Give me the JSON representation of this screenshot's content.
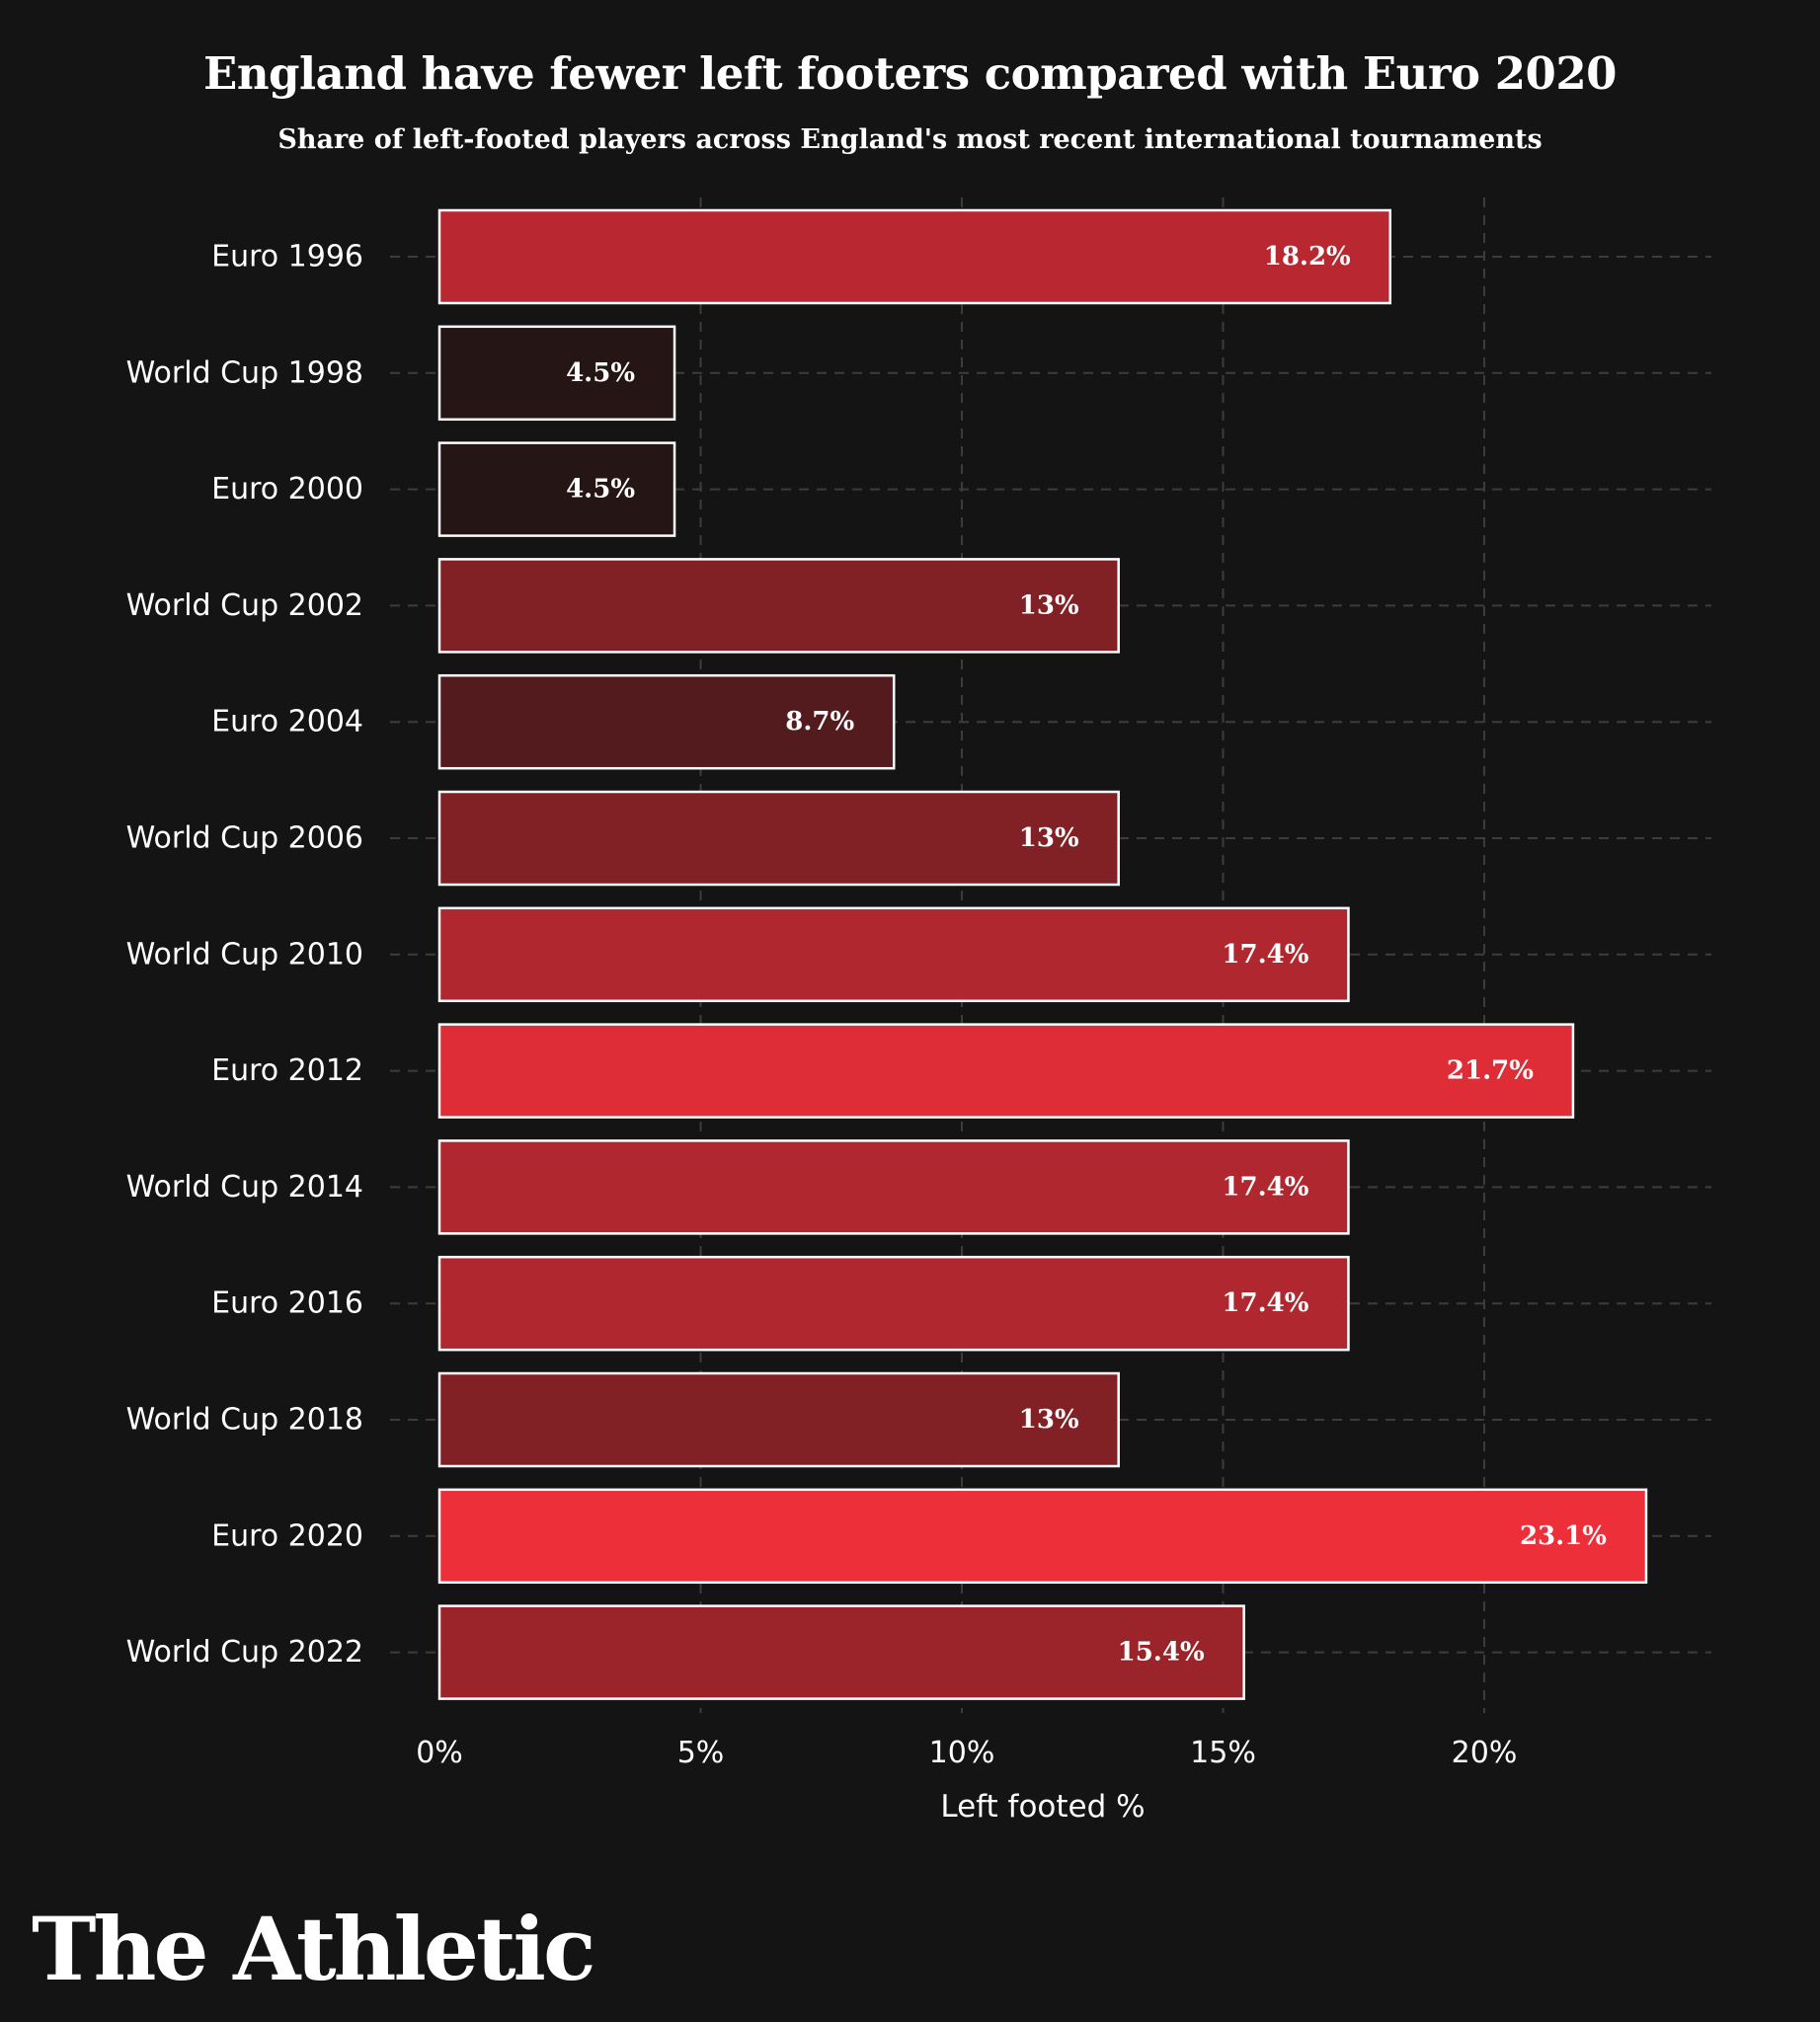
{
  "chart_data": {
    "type": "bar",
    "orientation": "horizontal",
    "title": "England have fewer left footers compared with Euro 2020",
    "subtitle": "Share of left-footed players across England's most recent international tournaments",
    "categories": [
      "Euro 1996",
      "World Cup 1998",
      "Euro 2000",
      "World Cup 2002",
      "Euro 2004",
      "World Cup 2006",
      "World Cup 2010",
      "Euro 2012",
      "World Cup 2014",
      "Euro 2016",
      "World Cup 2018",
      "Euro 2020",
      "World Cup 2022"
    ],
    "values": [
      18.2,
      4.5,
      4.5,
      13,
      8.7,
      13,
      17.4,
      21.7,
      17.4,
      17.4,
      13,
      23.1,
      15.4
    ],
    "value_labels": [
      "18.2%",
      "4.5%",
      "4.5%",
      "13%",
      "8.7%",
      "13%",
      "17.4%",
      "21.7%",
      "17.4%",
      "17.4%",
      "13%",
      "23.1%",
      "15.4%"
    ],
    "xlabel": "Left footed %",
    "ylabel": "",
    "xlim": [
      0,
      24.3
    ],
    "xticks": [
      0,
      5,
      10,
      15,
      20
    ],
    "xtick_labels": [
      "0%",
      "5%",
      "10%",
      "15%",
      "20%"
    ],
    "grid": true,
    "color_scale": {
      "low": "#261515",
      "high": "#ed2f3a",
      "border": "#ffffff"
    }
  },
  "brand": {
    "logo_text": "The Athletic"
  },
  "colors": {
    "background": "#141414",
    "grid": "#3c3c3c",
    "text": "#ffffff"
  }
}
